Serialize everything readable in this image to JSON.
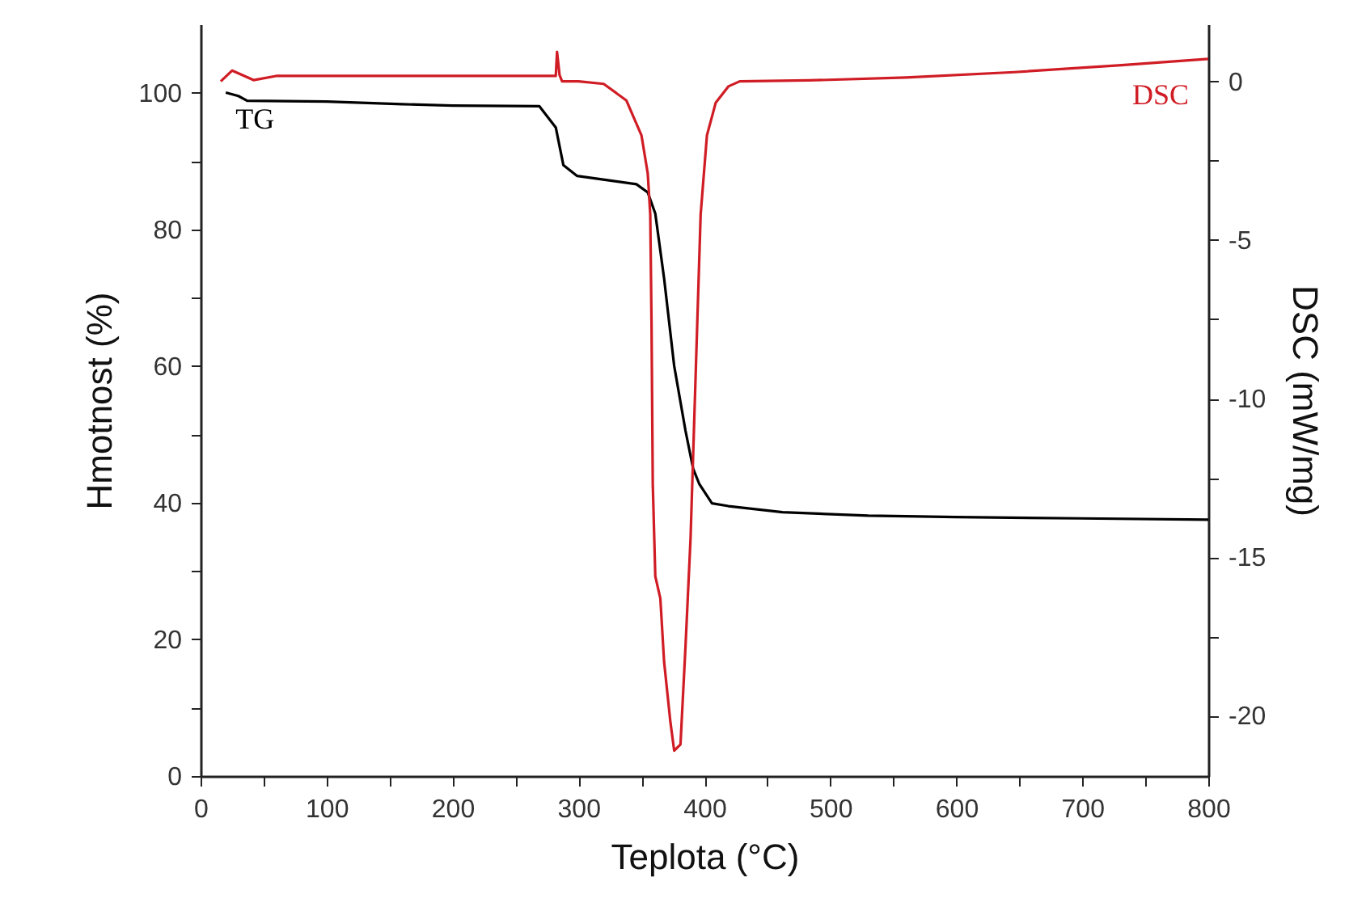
{
  "chart_data": {
    "type": "line",
    "xlabel": "Teplota (°C)",
    "ylabel": "Hmotnost (%)",
    "y2label": "DSC (mW/mg)",
    "xlim": [
      0,
      800
    ],
    "xticks": [
      0,
      {
        "value": 50,
        "label": null
      },
      100,
      {
        "value": 150,
        "label": null
      },
      200,
      {
        "value": 250,
        "label": null
      },
      300,
      {
        "value": 350,
        "label": null
      },
      400,
      {
        "value": 450,
        "label": null
      },
      500,
      {
        "value": 550,
        "label": null
      },
      600,
      {
        "value": 650,
        "label": null
      },
      700,
      {
        "value": 750,
        "label": null
      },
      800
    ],
    "ylim": [
      0,
      110
    ],
    "yticks": [
      0,
      {
        "value": 10,
        "label": null
      },
      20,
      {
        "value": 30,
        "label": null
      },
      40,
      {
        "value": 50,
        "label": null
      },
      60,
      {
        "value": 70,
        "label": null
      },
      80,
      {
        "value": 90,
        "label": null
      },
      100
    ],
    "y2lim": [
      -21.9,
      1.8
    ],
    "y2ticks": [
      {
        "value": -20,
        "label": "-20"
      },
      {
        "value": -17.5,
        "label": null
      },
      {
        "value": -15,
        "label": "-15"
      },
      {
        "value": -12.5,
        "label": null
      },
      {
        "value": -10,
        "label": "-10"
      },
      {
        "value": -7.5,
        "label": null
      },
      {
        "value": -5,
        "label": "-5"
      },
      {
        "value": -2.5,
        "label": null
      },
      0
    ],
    "grid": false,
    "line_style": "solid",
    "marker": "none",
    "series": [
      {
        "name": "TG",
        "color": "#000000",
        "x": [
          20,
          30,
          37,
          100,
          160,
          200,
          269,
          282,
          288,
          299,
          330,
          346,
          355,
          361,
          368,
          376,
          385,
          391,
          396,
          406,
          419,
          462,
          530,
          600,
          698,
          800
        ],
        "values": [
          100,
          99.5,
          98.8,
          98.7,
          98.3,
          98.1,
          98,
          94.9,
          89.4,
          87.8,
          87,
          86.6,
          85.4,
          82.3,
          72.8,
          60,
          50.5,
          45,
          42.7,
          39.9,
          39.5,
          38.6,
          38.1,
          37.9,
          37.7,
          37.5
        ]
      },
      {
        "name": "DSC",
        "axis": "y2",
        "color": "#d01c24",
        "x": [
          16,
          25,
          33,
          42,
          60,
          150,
          282,
          283,
          285,
          287,
          300,
          320,
          338,
          350,
          355,
          357,
          358,
          359,
          361,
          365,
          368,
          373,
          376,
          381,
          385,
          389,
          393,
          397,
          402,
          409,
          419,
          428,
          483,
          560,
          646,
          731,
          800
        ],
        "values": [
          0,
          0.34,
          0.2,
          0.04,
          0.17,
          0.17,
          0.17,
          0.93,
          0.2,
          0,
          0,
          -0.08,
          -0.6,
          -1.7,
          -2.9,
          -4.2,
          -7.6,
          -12.7,
          -15.6,
          -16.3,
          -18.3,
          -20.2,
          -21.1,
          -20.9,
          -17.8,
          -14.4,
          -9.3,
          -4.2,
          -1.7,
          -0.67,
          -0.16,
          0,
          0.03,
          0.12,
          0.29,
          0.51,
          0.71
        ]
      }
    ]
  }
}
